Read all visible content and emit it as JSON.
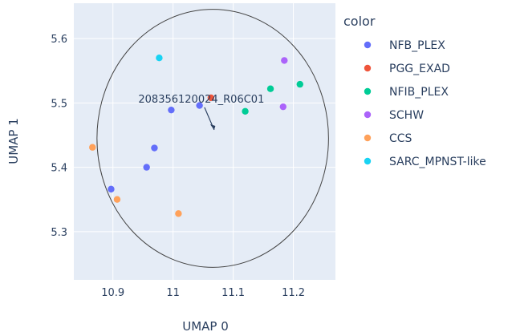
{
  "chart_data": {
    "type": "scatter",
    "xlabel": "UMAP 0",
    "ylabel": "UMAP 1",
    "xlim": [
      10.835,
      11.27
    ],
    "ylim": [
      5.225,
      5.655
    ],
    "x_ticks": [
      10.9,
      11,
      11.1,
      11.2
    ],
    "x_tick_labels": [
      "10.9",
      "11",
      "11.1",
      "11.2"
    ],
    "y_ticks": [
      5.3,
      5.4,
      5.5,
      5.6
    ],
    "y_tick_labels": [
      "5.3",
      "5.4",
      "5.5",
      "5.6"
    ],
    "grid": true,
    "legend_title": "color",
    "legend_placement": "right",
    "series": [
      {
        "name": "NFB_PLEX",
        "color": "#636efa",
        "points": [
          [
            11.044,
            5.496
          ],
          [
            10.997,
            5.489
          ],
          [
            10.969,
            5.43
          ],
          [
            10.956,
            5.4
          ],
          [
            10.897,
            5.366
          ]
        ]
      },
      {
        "name": "PGG_EXAD",
        "color": "#ef553b",
        "points": [
          [
            11.063,
            5.508
          ]
        ]
      },
      {
        "name": "NFIB_PLEX",
        "color": "#00cc96",
        "points": [
          [
            11.162,
            5.522
          ],
          [
            11.211,
            5.529
          ],
          [
            11.12,
            5.487
          ]
        ]
      },
      {
        "name": "SCHW",
        "color": "#ab63fa",
        "points": [
          [
            11.185,
            5.566
          ],
          [
            11.183,
            5.494
          ]
        ]
      },
      {
        "name": "CCS",
        "color": "#ffa15a",
        "points": [
          [
            10.866,
            5.431
          ],
          [
            10.907,
            5.35
          ],
          [
            11.009,
            5.328
          ]
        ]
      },
      {
        "name": "SARC_MPNST-like",
        "color": "#19d3f3",
        "points": [
          [
            10.977,
            5.57
          ]
        ]
      }
    ],
    "circle": {
      "cx": 11.066,
      "cy": 5.445,
      "rx": 0.1925,
      "ry": 0.2005
    },
    "annotation": {
      "text": "208356120024_R06C01",
      "x": 11.063,
      "y": 5.508
    }
  }
}
